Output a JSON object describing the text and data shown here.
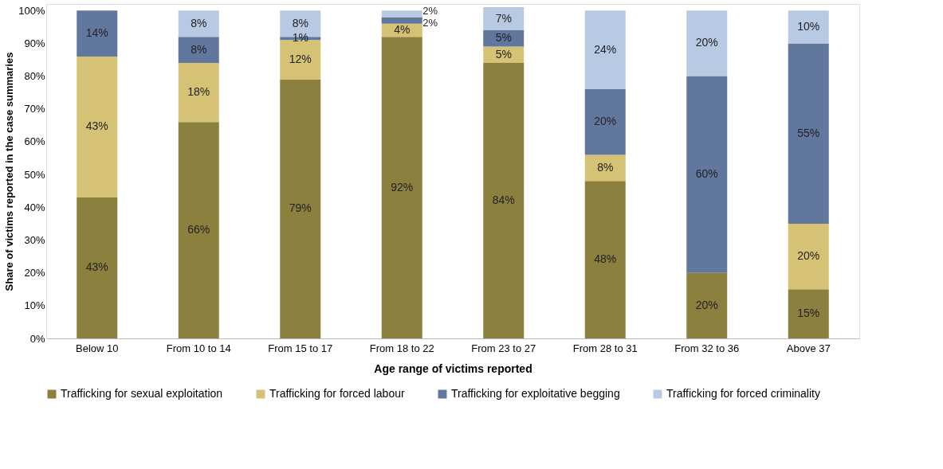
{
  "chart_data": {
    "type": "bar",
    "stacked": true,
    "xlabel": "Age range of victims reported",
    "ylabel": "Share of victims reported in the case summaries",
    "categories": [
      "Below 10",
      "From 10 to 14",
      "From 15 to 17",
      "From 18 to 22",
      "From 23 to 27",
      "From 28 to 31",
      "From 32 to 36",
      "Above 37"
    ],
    "series": [
      {
        "name": "Trafficking for sexual exploitation",
        "color": "#8c803e",
        "values": [
          43,
          66,
          79,
          92,
          84,
          48,
          20,
          15
        ],
        "value_labels": [
          "43%",
          "66%",
          "79%",
          "92%",
          "84%",
          "48%",
          "20%",
          "15%"
        ]
      },
      {
        "name": "Trafficking for forced labour",
        "color": "#d5c274",
        "values": [
          43,
          18,
          12,
          4,
          5,
          8,
          null,
          20
        ],
        "value_labels": [
          "43%",
          "18%",
          "12%",
          "4%",
          "5%",
          "8%",
          null,
          "20%"
        ]
      },
      {
        "name": "Trafficking for exploitative begging",
        "color": "#61779e",
        "values": [
          14,
          8,
          1,
          2,
          5,
          20,
          60,
          55
        ],
        "value_labels": [
          "14%",
          "8%",
          "1%",
          "2%",
          "5%",
          "20%",
          "60%",
          "55%"
        ]
      },
      {
        "name": "Trafficking for forced criminality",
        "color": "#b7c9e3",
        "values": [
          null,
          8,
          8,
          2,
          7,
          24,
          20,
          10
        ],
        "value_labels": [
          null,
          "8%",
          "8%",
          "2%",
          "7%",
          "24%",
          "20%",
          "10%"
        ]
      }
    ],
    "ylim": [
      0,
      102
    ],
    "yticks": [
      {
        "value": 0,
        "label": "0%"
      },
      {
        "value": 10,
        "label": "10%"
      },
      {
        "value": 20,
        "label": "20%"
      },
      {
        "value": 30,
        "label": "30%"
      },
      {
        "value": 40,
        "label": "40%"
      },
      {
        "value": 50,
        "label": "50%"
      },
      {
        "value": 60,
        "label": "60%"
      },
      {
        "value": 70,
        "label": "70%"
      },
      {
        "value": 80,
        "label": "80%"
      },
      {
        "value": 90,
        "label": "90%"
      },
      {
        "value": 100,
        "label": "100%"
      }
    ],
    "grid": false,
    "legend": "bottom"
  }
}
